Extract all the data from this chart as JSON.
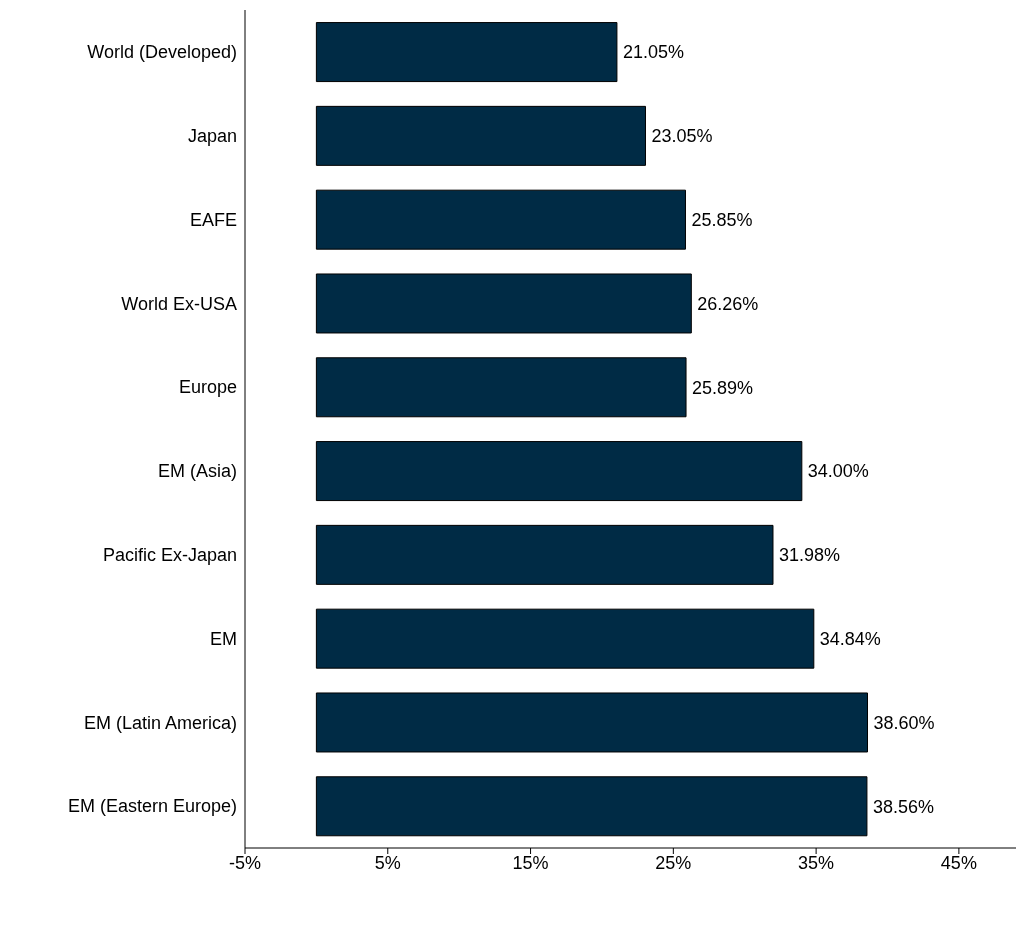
{
  "chart_data": {
    "type": "bar",
    "orientation": "horizontal",
    "categories": [
      "World (Developed)",
      "Japan",
      "EAFE",
      "World Ex-USA",
      "Europe",
      "EM (Asia)",
      "Pacific Ex-Japan",
      "EM",
      "EM (Latin America)",
      "EM (Eastern Europe)"
    ],
    "values": [
      21.05,
      23.05,
      25.85,
      26.26,
      25.89,
      34.0,
      31.98,
      34.84,
      38.6,
      38.56
    ],
    "value_labels": [
      "21.05%",
      "23.05%",
      "25.85%",
      "26.26%",
      "25.89%",
      "34.00%",
      "31.98%",
      "34.84%",
      "38.60%",
      "38.56%"
    ],
    "color": "#002b45",
    "xlim": [
      -5,
      49
    ],
    "xticks": [
      {
        "value": -5,
        "label": "-5%"
      },
      {
        "value": 5,
        "label": "5%"
      },
      {
        "value": 15,
        "label": "15%"
      },
      {
        "value": 25,
        "label": "25%"
      },
      {
        "value": 35,
        "label": "35%"
      },
      {
        "value": 45,
        "label": "45%"
      }
    ]
  }
}
